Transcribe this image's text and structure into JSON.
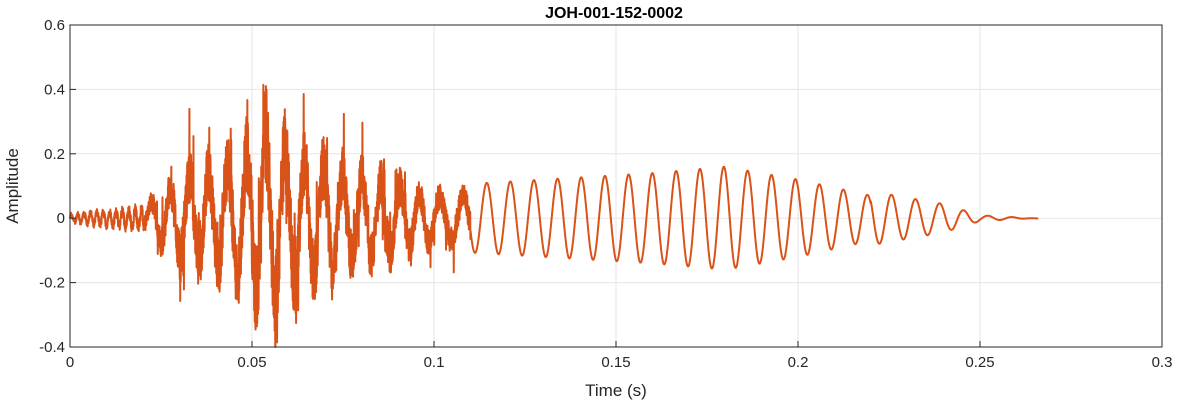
{
  "chart_data": {
    "type": "line",
    "title": "JOH-001-152-0002",
    "xlabel": "Time (s)",
    "ylabel": "Amplitude",
    "xlim": [
      0,
      0.3
    ],
    "ylim": [
      -0.4,
      0.6
    ],
    "xticks": [
      0,
      0.05,
      0.1,
      0.15,
      0.2,
      0.25,
      0.3
    ],
    "xtick_labels": [
      "0",
      "0.05",
      "0.1",
      "0.15",
      "0.2",
      "0.25",
      "0.3"
    ],
    "yticks": [
      -0.4,
      -0.2,
      0,
      0.2,
      0.4,
      0.6
    ],
    "ytick_labels": [
      "-0.4",
      "-0.2",
      "0",
      "0.2",
      "0.4",
      "0.6"
    ],
    "grid": true,
    "legend": "none",
    "series": [
      {
        "color": "#D95319",
        "x_range": [
          0,
          0.266
        ],
        "description_envelope": [
          [
            0.0,
            0.02
          ],
          [
            0.02,
            0.05
          ],
          [
            0.03,
            0.22
          ],
          [
            0.045,
            0.3
          ],
          [
            0.054,
            0.46
          ],
          [
            0.06,
            0.35
          ],
          [
            0.075,
            0.25
          ],
          [
            0.09,
            0.18
          ],
          [
            0.1,
            0.12
          ],
          [
            0.13,
            0.14
          ],
          [
            0.16,
            0.16
          ],
          [
            0.18,
            0.18
          ],
          [
            0.2,
            0.14
          ],
          [
            0.22,
            0.09
          ],
          [
            0.24,
            0.05
          ],
          [
            0.25,
            0.015
          ],
          [
            0.266,
            0.005
          ]
        ]
      }
    ]
  }
}
